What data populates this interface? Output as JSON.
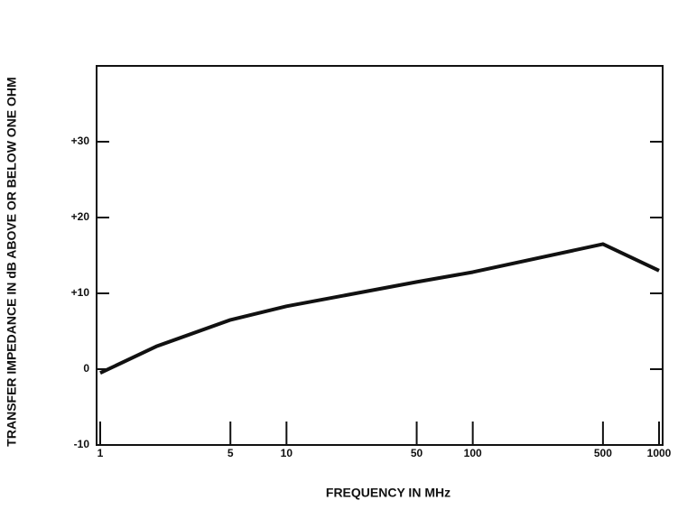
{
  "chart_data": {
    "type": "line",
    "xlabel": "FREQUENCY IN MHz",
    "ylabel": "TRANSFER IMPEDANCE IN dB ABOVE OR BELOW ONE OHM",
    "x": [
      1,
      2,
      5,
      10,
      50,
      100,
      500,
      1000
    ],
    "series": [
      {
        "color": "#111111",
        "values": [
          -0.5,
          3,
          6.5,
          8.3,
          11.5,
          12.8,
          16.5,
          13
        ]
      }
    ],
    "xscale": "log",
    "xlim": [
      1,
      1000
    ],
    "xticks": [
      1,
      5,
      10,
      50,
      100,
      500,
      1000
    ],
    "ylim": [
      -10,
      40
    ],
    "yticks": [
      {
        "value": 30,
        "label": "+30"
      },
      {
        "value": 20,
        "label": "+20"
      },
      {
        "value": 10,
        "label": "+10"
      },
      0,
      -10
    ]
  }
}
